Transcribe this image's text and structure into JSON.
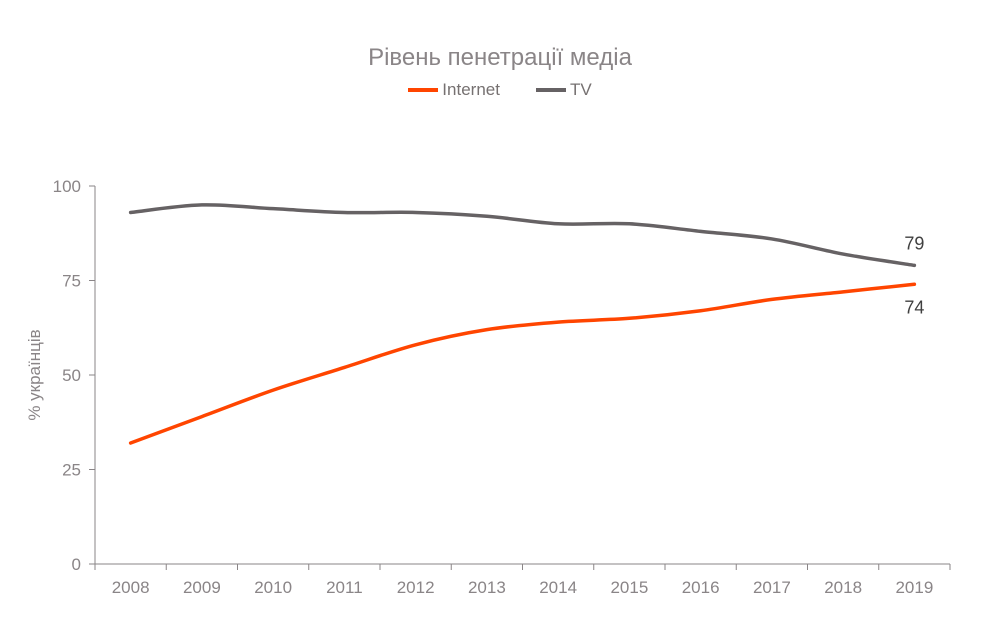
{
  "chart_data": {
    "type": "line",
    "title": "Рівень пенетрації медіа",
    "xlabel": "",
    "ylabel": "% українців",
    "ylim": [
      0,
      100
    ],
    "yticks": [
      "0",
      "25",
      "50",
      "75",
      "100"
    ],
    "categories": [
      "2008",
      "2009",
      "2010",
      "2011",
      "2012",
      "2013",
      "2014",
      "2015",
      "2016",
      "2017",
      "2018",
      "2019"
    ],
    "legend_position": "top",
    "series": [
      {
        "name": "Internet",
        "color": "#ff4500",
        "values": [
          32,
          39,
          46,
          52,
          58,
          62,
          64,
          65,
          67,
          70,
          72,
          74
        ],
        "end_label": "74"
      },
      {
        "name": "TV",
        "color": "#666264",
        "values": [
          93,
          95,
          94,
          93,
          93,
          92,
          90,
          90,
          88,
          86,
          82,
          79
        ],
        "end_label": "79"
      }
    ]
  }
}
